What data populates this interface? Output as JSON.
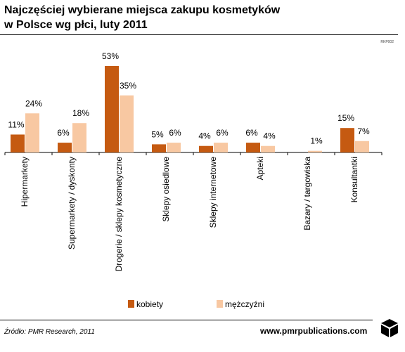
{
  "header": {
    "title_line1": "Najczęściej wybierane miejsca zakupu kosmetyków",
    "title_line2": "w Polsce wg płci, luty 2011",
    "code": "RKP002"
  },
  "footer": {
    "source": "Źródło: PMR Research, 2011",
    "url": "www.pmrpublications.com"
  },
  "colors": {
    "kobiety": "#C55A11",
    "mezczyzni": "#F8C8A2",
    "axis": "#000000"
  },
  "logo": {
    "icon": "pmr-cube-icon"
  },
  "chart_data": {
    "type": "bar",
    "title": "Najczęściej wybierane miejsca zakupu kosmetyków w Polsce wg płci, luty 2011",
    "categories": [
      "Hipermarkety",
      "Supermarkety / dyskonty",
      "Drogerie / sklepy kosmetyczne",
      "Sklepy osiedlowe",
      "Sklepy internetowe",
      "Apteki",
      "Bazary / targowiska",
      "Konsultantki"
    ],
    "series": [
      {
        "name": "kobiety",
        "values": [
          11,
          6,
          53,
          5,
          4,
          6,
          0,
          15
        ],
        "labels": [
          "11%",
          "6%",
          "53%",
          "5%",
          "4%",
          "6%",
          "",
          "15%"
        ]
      },
      {
        "name": "mężczyźni",
        "values": [
          24,
          18,
          35,
          6,
          6,
          4,
          1,
          7
        ],
        "labels": [
          "24%",
          "18%",
          "35%",
          "6%",
          "6%",
          "4%",
          "1%",
          "7%"
        ]
      }
    ],
    "ylim": [
      0,
      53
    ],
    "grid": false,
    "legend": "bottom"
  }
}
